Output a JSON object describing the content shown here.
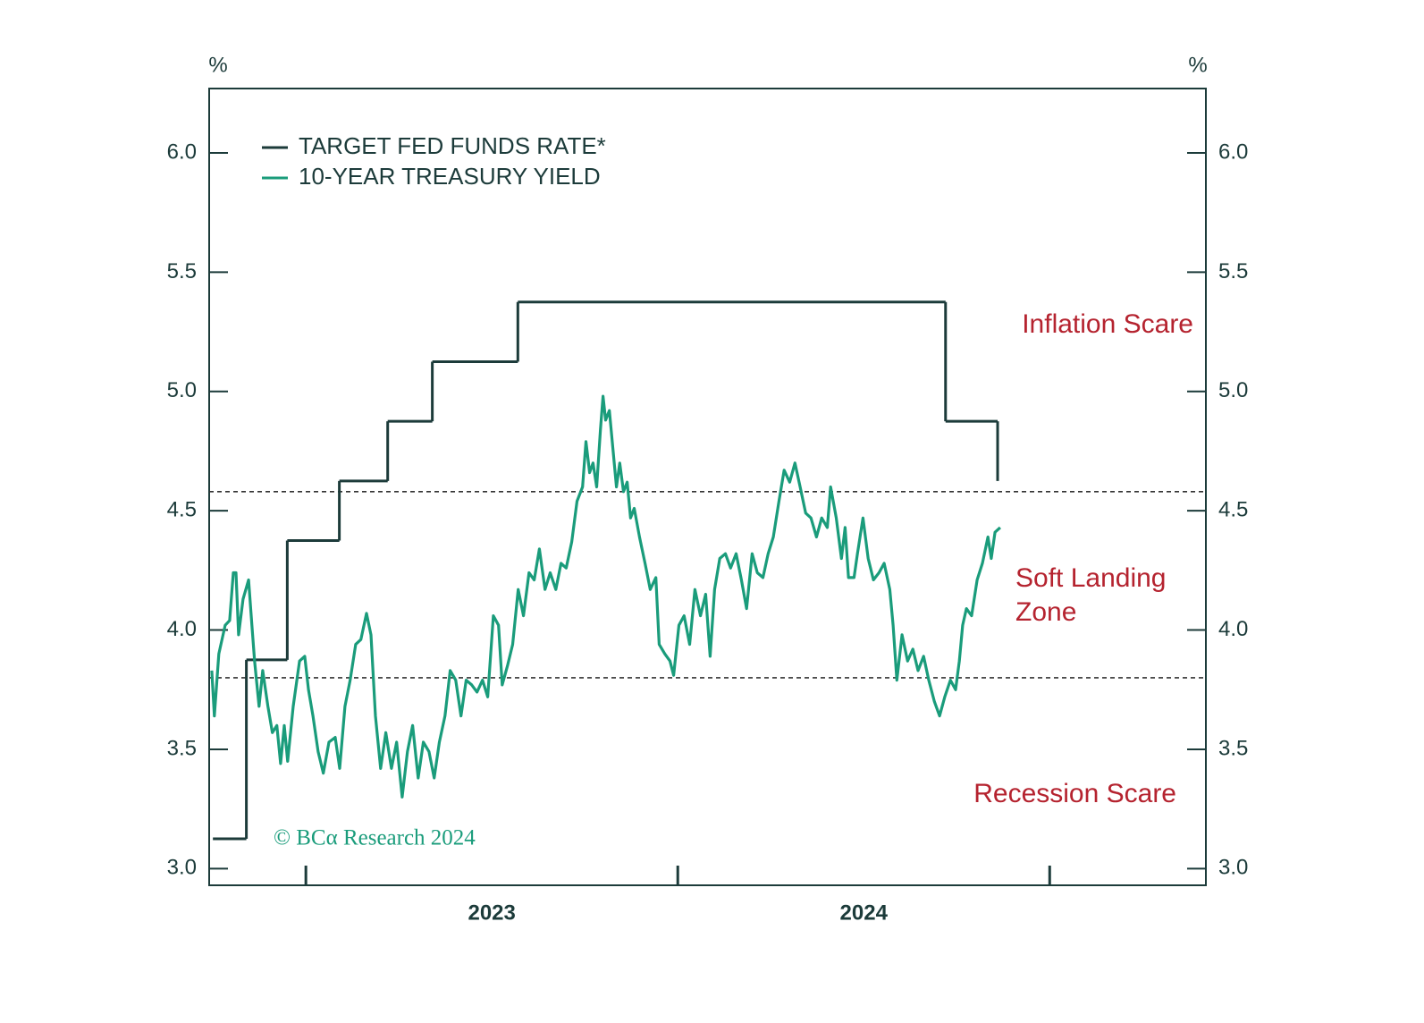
{
  "chart_data": {
    "type": "line",
    "y_unit_left": "%",
    "y_unit_right": "%",
    "xlim": [
      2022.74,
      2025.42
    ],
    "xticks": [
      2023,
      2024,
      2025
    ],
    "xlabels": [
      {
        "value": 2023.5,
        "label": "2023"
      },
      {
        "value": 2024.5,
        "label": "2024"
      }
    ],
    "ylim": [
      2.93,
      6.27
    ],
    "yticks": [
      {
        "value": 3,
        "label": "3.0"
      },
      {
        "value": 3.5,
        "label": "3.5"
      },
      {
        "value": 4,
        "label": "4.0"
      },
      {
        "value": 4.5,
        "label": "4.5"
      },
      {
        "value": 5,
        "label": "5.0"
      },
      {
        "value": 5.5,
        "label": "5.5"
      },
      {
        "value": 6,
        "label": "6.0"
      }
    ],
    "reference_lines": [
      4.58,
      3.8
    ],
    "annotations": [
      "Inflation Scare",
      "Soft Landing",
      "Zone",
      "Recession Scare"
    ],
    "source": "© BCα Research 2024",
    "series": [
      {
        "name": "TARGET FED FUNDS RATE*",
        "color": "#1c3b3a",
        "step": true,
        "x": [
          2022.75,
          2022.84,
          2022.95,
          2023.09,
          2023.22,
          2023.34,
          2023.57,
          2024.72,
          2024.86
        ],
        "values": [
          3.125,
          3.875,
          4.375,
          4.625,
          4.875,
          5.125,
          5.375,
          4.875,
          4.625
        ]
      },
      {
        "name": "10-YEAR TREASURY YIELD",
        "color": "#1a9c7b",
        "x": [
          2022.747,
          2022.754,
          2022.766,
          2022.783,
          2022.795,
          2022.805,
          2022.812,
          2022.819,
          2022.831,
          2022.846,
          2022.855,
          2022.862,
          2022.874,
          2022.884,
          2022.898,
          2022.91,
          2022.922,
          2022.932,
          2022.942,
          2022.951,
          2022.966,
          2022.983,
          2022.997,
          2023.007,
          2023.019,
          2023.033,
          2023.047,
          2023.062,
          2023.079,
          2023.091,
          2023.105,
          2023.119,
          2023.134,
          2023.148,
          2023.163,
          2023.175,
          2023.187,
          2023.201,
          2023.215,
          2023.23,
          2023.244,
          2023.259,
          2023.273,
          2023.287,
          2023.302,
          2023.316,
          2023.331,
          2023.345,
          2023.359,
          2023.374,
          2023.388,
          2023.403,
          2023.417,
          2023.431,
          2023.446,
          2023.46,
          2023.475,
          2023.489,
          2023.504,
          2023.518,
          2023.528,
          2023.542,
          2023.556,
          2023.571,
          2023.585,
          2023.6,
          2023.614,
          2023.628,
          2023.643,
          2023.657,
          2023.672,
          2023.686,
          2023.7,
          2023.715,
          2023.729,
          2023.744,
          2023.753,
          2023.763,
          2023.772,
          2023.782,
          2023.792,
          2023.799,
          2023.806,
          2023.816,
          2023.825,
          2023.835,
          2023.844,
          2023.854,
          2023.864,
          2023.873,
          2023.883,
          2023.897,
          2023.912,
          2023.926,
          2023.941,
          2023.95,
          2023.965,
          2023.979,
          2023.989,
          2024.003,
          2024.017,
          2024.032,
          2024.046,
          2024.061,
          2024.075,
          2024.087,
          2024.099,
          2024.113,
          2024.128,
          2024.142,
          2024.157,
          2024.171,
          2024.185,
          2024.2,
          2024.214,
          2024.229,
          2024.243,
          2024.257,
          2024.272,
          2024.286,
          2024.301,
          2024.315,
          2024.329,
          2024.344,
          2024.358,
          2024.373,
          2024.387,
          2024.402,
          2024.411,
          2024.426,
          2024.44,
          2024.45,
          2024.459,
          2024.474,
          2024.483,
          2024.498,
          2024.512,
          2024.526,
          2024.541,
          2024.555,
          2024.57,
          2024.579,
          2024.589,
          2024.603,
          2024.618,
          2024.632,
          2024.646,
          2024.661,
          2024.675,
          2024.69,
          2024.704,
          2024.718,
          2024.733,
          2024.747,
          2024.757,
          2024.766,
          2024.776,
          2024.79,
          2024.805,
          2024.819,
          2024.834,
          2024.843,
          2024.853,
          2024.867
        ],
        "values": [
          3.83,
          3.64,
          3.9,
          4.02,
          4.04,
          4.24,
          4.24,
          3.98,
          4.13,
          4.21,
          4.02,
          3.87,
          3.68,
          3.83,
          3.68,
          3.57,
          3.6,
          3.44,
          3.6,
          3.45,
          3.68,
          3.87,
          3.89,
          3.75,
          3.64,
          3.49,
          3.4,
          3.53,
          3.55,
          3.42,
          3.68,
          3.79,
          3.94,
          3.96,
          4.07,
          3.98,
          3.64,
          3.42,
          3.57,
          3.42,
          3.53,
          3.3,
          3.49,
          3.6,
          3.38,
          3.53,
          3.49,
          3.38,
          3.53,
          3.64,
          3.83,
          3.79,
          3.64,
          3.79,
          3.77,
          3.74,
          3.79,
          3.72,
          4.06,
          4.02,
          3.77,
          3.85,
          3.94,
          4.17,
          4.06,
          4.24,
          4.21,
          4.34,
          4.17,
          4.24,
          4.17,
          4.28,
          4.26,
          4.37,
          4.54,
          4.6,
          4.79,
          4.66,
          4.7,
          4.6,
          4.84,
          4.98,
          4.88,
          4.92,
          4.77,
          4.6,
          4.7,
          4.58,
          4.62,
          4.47,
          4.51,
          4.39,
          4.28,
          4.17,
          4.22,
          3.94,
          3.9,
          3.87,
          3.81,
          4.02,
          4.06,
          3.94,
          4.17,
          4.06,
          4.15,
          3.89,
          4.17,
          4.3,
          4.32,
          4.26,
          4.32,
          4.21,
          4.09,
          4.32,
          4.24,
          4.22,
          4.32,
          4.39,
          4.54,
          4.67,
          4.62,
          4.7,
          4.6,
          4.49,
          4.47,
          4.39,
          4.47,
          4.43,
          4.6,
          4.47,
          4.3,
          4.43,
          4.22,
          4.22,
          4.32,
          4.47,
          4.3,
          4.21,
          4.24,
          4.28,
          4.17,
          4.02,
          3.79,
          3.98,
          3.87,
          3.92,
          3.83,
          3.89,
          3.79,
          3.7,
          3.64,
          3.72,
          3.79,
          3.75,
          3.87,
          4.02,
          4.09,
          4.06,
          4.21,
          4.28,
          4.39,
          4.3,
          4.41,
          4.43
        ]
      }
    ]
  }
}
